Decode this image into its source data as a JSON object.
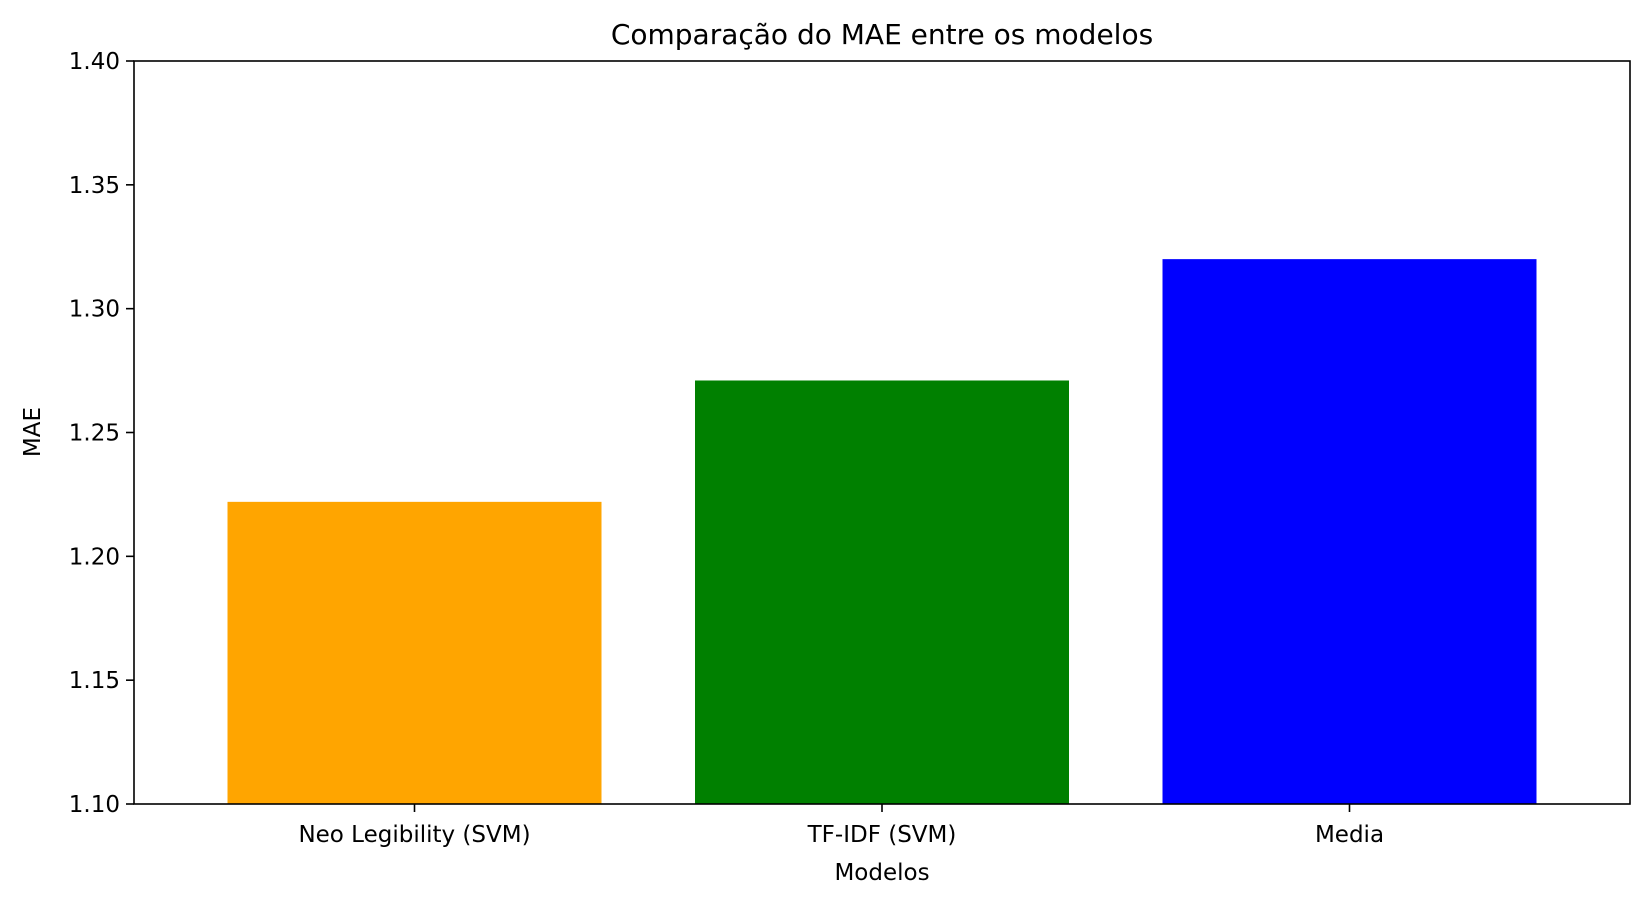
{
  "chart_data": {
    "type": "bar",
    "title": "Comparação do MAE entre os modelos",
    "xlabel": "Modelos",
    "ylabel": "MAE",
    "categories": [
      "Neo Legibility (SVM)",
      "TF-IDF (SVM)",
      "Media"
    ],
    "values": [
      1.222,
      1.271,
      1.32
    ],
    "colors": [
      "#ffa500",
      "#008000",
      "#0000ff"
    ],
    "ylim": [
      1.1,
      1.4
    ],
    "yticks": [
      "1.10",
      "1.15",
      "1.20",
      "1.25",
      "1.30",
      "1.35",
      "1.40"
    ],
    "grid": false,
    "legend": "none"
  }
}
